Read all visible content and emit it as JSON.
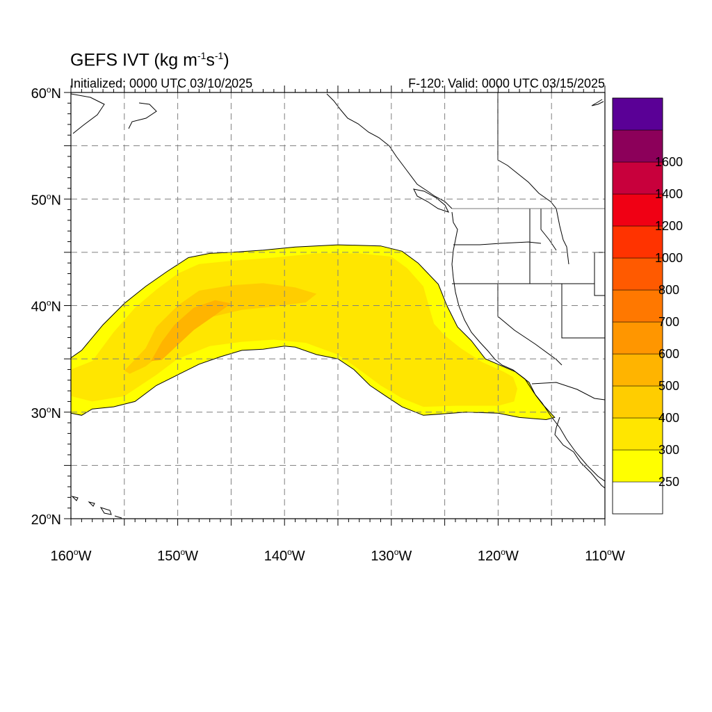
{
  "title": {
    "main": "GEFS IVT (kg m",
    "exp1": "-1",
    "mid": "s",
    "exp2": "-1",
    "end": ")"
  },
  "subtitle_left": "Initialized: 0000 UTC 03/10/2025",
  "subtitle_right": "F-120: Valid: 0000 UTC 03/15/2025",
  "map": {
    "lon_range": [
      -160,
      -110
    ],
    "lat_range": [
      20,
      60
    ],
    "grid_step_deg": 5,
    "x_ticks": [
      {
        "lon": -160,
        "num": "160",
        "deg": "o",
        "hemi": "W"
      },
      {
        "lon": -150,
        "num": "150",
        "deg": "o",
        "hemi": "W"
      },
      {
        "lon": -140,
        "num": "140",
        "deg": "o",
        "hemi": "W"
      },
      {
        "lon": -130,
        "num": "130",
        "deg": "o",
        "hemi": "W"
      },
      {
        "lon": -120,
        "num": "120",
        "deg": "o",
        "hemi": "W"
      },
      {
        "lon": -110,
        "num": "110",
        "deg": "o",
        "hemi": "W"
      }
    ],
    "y_ticks": [
      {
        "lat": 60,
        "num": "60",
        "deg": "o",
        "hemi": "N"
      },
      {
        "lat": 50,
        "num": "50",
        "deg": "o",
        "hemi": "N"
      },
      {
        "lat": 40,
        "num": "40",
        "deg": "o",
        "hemi": "N"
      },
      {
        "lat": 30,
        "num": "30",
        "deg": "o",
        "hemi": "N"
      },
      {
        "lat": 20,
        "num": "20",
        "deg": "o",
        "hemi": "N"
      }
    ]
  },
  "ivt_shading": {
    "outer_250": [
      [
        -160,
        35.1
      ],
      [
        -159,
        35.8
      ],
      [
        -157,
        38.2
      ],
      [
        -155,
        40.2
      ],
      [
        -153,
        41.8
      ],
      [
        -151,
        43.2
      ],
      [
        -149,
        44.5
      ],
      [
        -147,
        44.9
      ],
      [
        -145,
        45.0
      ],
      [
        -142,
        45.2
      ],
      [
        -139,
        45.5
      ],
      [
        -135,
        45.7
      ],
      [
        -131,
        45.6
      ],
      [
        -129,
        45.1
      ],
      [
        -127.5,
        44.0
      ],
      [
        -125.6,
        42.0
      ],
      [
        -124.8,
        40.0
      ],
      [
        -123.8,
        38.0
      ],
      [
        -122.5,
        36.7
      ],
      [
        -121.2,
        35.0
      ],
      [
        -119.8,
        34.4
      ],
      [
        -118.4,
        33.8
      ],
      [
        -117.1,
        32.8
      ],
      [
        -116.5,
        31.6
      ],
      [
        -115.8,
        30.7
      ],
      [
        -114.7,
        29.5
      ],
      [
        -115.5,
        29.3
      ],
      [
        -118,
        29.5
      ],
      [
        -120,
        29.9
      ],
      [
        -123,
        30.0
      ],
      [
        -127,
        29.7
      ],
      [
        -129,
        30.5
      ],
      [
        -130.5,
        31.5
      ],
      [
        -132,
        32.5
      ],
      [
        -133.5,
        34.0
      ],
      [
        -135,
        35.0
      ],
      [
        -137,
        35.4
      ],
      [
        -139,
        36.1
      ],
      [
        -140,
        36.2
      ],
      [
        -142,
        35.9
      ],
      [
        -144,
        35.8
      ],
      [
        -146,
        35.2
      ],
      [
        -148,
        34.5
      ],
      [
        -150,
        33.5
      ],
      [
        -152,
        32.5
      ],
      [
        -154,
        31.0
      ],
      [
        -156,
        30.5
      ],
      [
        -158,
        30.3
      ],
      [
        -159,
        29.7
      ],
      [
        -160,
        29.9
      ]
    ],
    "band_300": [
      [
        -160,
        34.0
      ],
      [
        -158,
        34.8
      ],
      [
        -156,
        37.5
      ],
      [
        -154,
        39.8
      ],
      [
        -152,
        41.5
      ],
      [
        -150,
        43.0
      ],
      [
        -148,
        43.9
      ],
      [
        -145,
        44.2
      ],
      [
        -141,
        44.5
      ],
      [
        -137,
        44.9
      ],
      [
        -133,
        44.9
      ],
      [
        -130,
        44.6
      ],
      [
        -128.5,
        43.5
      ],
      [
        -127,
        41.8
      ],
      [
        -126.5,
        40.0
      ],
      [
        -126,
        38.3
      ],
      [
        -125,
        37.2
      ],
      [
        -123.5,
        36.0
      ],
      [
        -121.5,
        34.7
      ],
      [
        -119.5,
        33.8
      ],
      [
        -118.6,
        33.3
      ],
      [
        -118.2,
        32.2
      ],
      [
        -118.5,
        31.0
      ],
      [
        -120,
        30.6
      ],
      [
        -124,
        30.6
      ],
      [
        -127,
        30.5
      ],
      [
        -129,
        31.3
      ],
      [
        -131,
        32.5
      ],
      [
        -133,
        34.0
      ],
      [
        -135,
        35.4
      ],
      [
        -138,
        36.5
      ],
      [
        -141,
        36.8
      ],
      [
        -144,
        36.6
      ],
      [
        -147,
        36.2
      ],
      [
        -150,
        35.0
      ],
      [
        -152,
        33.5
      ],
      [
        -155,
        31.5
      ],
      [
        -158,
        31.0
      ],
      [
        -160,
        31.5
      ]
    ],
    "band_400": [
      [
        -155,
        33.9
      ],
      [
        -153,
        36.0
      ],
      [
        -152,
        38.0
      ],
      [
        -150,
        40.0
      ],
      [
        -148,
        41.4
      ],
      [
        -145,
        41.9
      ],
      [
        -142,
        42.1
      ],
      [
        -139,
        41.7
      ],
      [
        -137,
        41.1
      ],
      [
        -138,
        40.3
      ],
      [
        -141,
        39.9
      ],
      [
        -144,
        39.6
      ],
      [
        -147,
        38.9
      ],
      [
        -149,
        37.6
      ],
      [
        -151,
        35.9
      ],
      [
        -153,
        34.3
      ],
      [
        -154.5,
        33.6
      ]
    ],
    "band_500": [
      [
        -152.5,
        34.8
      ],
      [
        -151.5,
        36.6
      ],
      [
        -150.3,
        38.2
      ],
      [
        -148.5,
        39.8
      ],
      [
        -146.5,
        40.5
      ],
      [
        -145,
        40.2
      ],
      [
        -146.5,
        39.1
      ],
      [
        -148.5,
        37.7
      ],
      [
        -150,
        36.3
      ],
      [
        -151.5,
        34.9
      ]
    ]
  },
  "colorbar": {
    "colors": [
      "#ffffff",
      "#ffff00",
      "#ffe600",
      "#ffcd00",
      "#ffb400",
      "#ff9600",
      "#ff7800",
      "#ff5a00",
      "#ff3300",
      "#f00014",
      "#c8003c",
      "#8c005a",
      "#5a0096"
    ],
    "labels": [
      "250",
      "300",
      "400",
      "500",
      "600",
      "700",
      "800",
      "1000",
      "1200",
      "1400",
      "1600"
    ]
  }
}
